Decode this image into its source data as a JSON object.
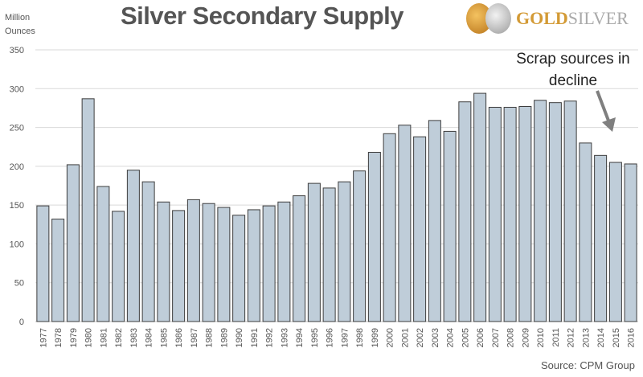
{
  "chart_data": {
    "type": "bar",
    "title": "Silver Secondary Supply",
    "ylabel": "Million Ounces",
    "xlabel": "",
    "ylim": [
      0,
      350
    ],
    "yticks": [
      0,
      50,
      100,
      150,
      200,
      250,
      300,
      350
    ],
    "grid": true,
    "categories": [
      "1977",
      "1978",
      "1979",
      "1980",
      "1981",
      "1982",
      "1983",
      "1984",
      "1985",
      "1986",
      "1987",
      "1988",
      "1989",
      "1990",
      "1991",
      "1992",
      "1993",
      "1994",
      "1995",
      "1996",
      "1997",
      "1998",
      "1999",
      "2000",
      "2001",
      "2002",
      "2003",
      "2004",
      "2005",
      "2006",
      "2007",
      "2008",
      "2009",
      "2010",
      "2011",
      "2012",
      "2013",
      "2014",
      "2015",
      "2016"
    ],
    "values": [
      149,
      132,
      202,
      287,
      174,
      142,
      195,
      180,
      154,
      143,
      157,
      152,
      147,
      137,
      144,
      149,
      154,
      162,
      178,
      172,
      180,
      194,
      218,
      242,
      253,
      238,
      259,
      245,
      283,
      294,
      276,
      276,
      277,
      285,
      282,
      284,
      230,
      214,
      205,
      203
    ],
    "annotation": "Scrap sources in decline",
    "source": "Source: CPM Group",
    "colors": {
      "bar": "#bfcdd9",
      "bar_edge": "#3d3d3d",
      "grid": "#d9d9d9",
      "arrow": "#7f7f7f"
    }
  },
  "header": {
    "unit_line1": "Million",
    "unit_line2": "Ounces"
  },
  "logo": {
    "brand_gold": "GOLD",
    "brand_silver": "SILVER"
  }
}
